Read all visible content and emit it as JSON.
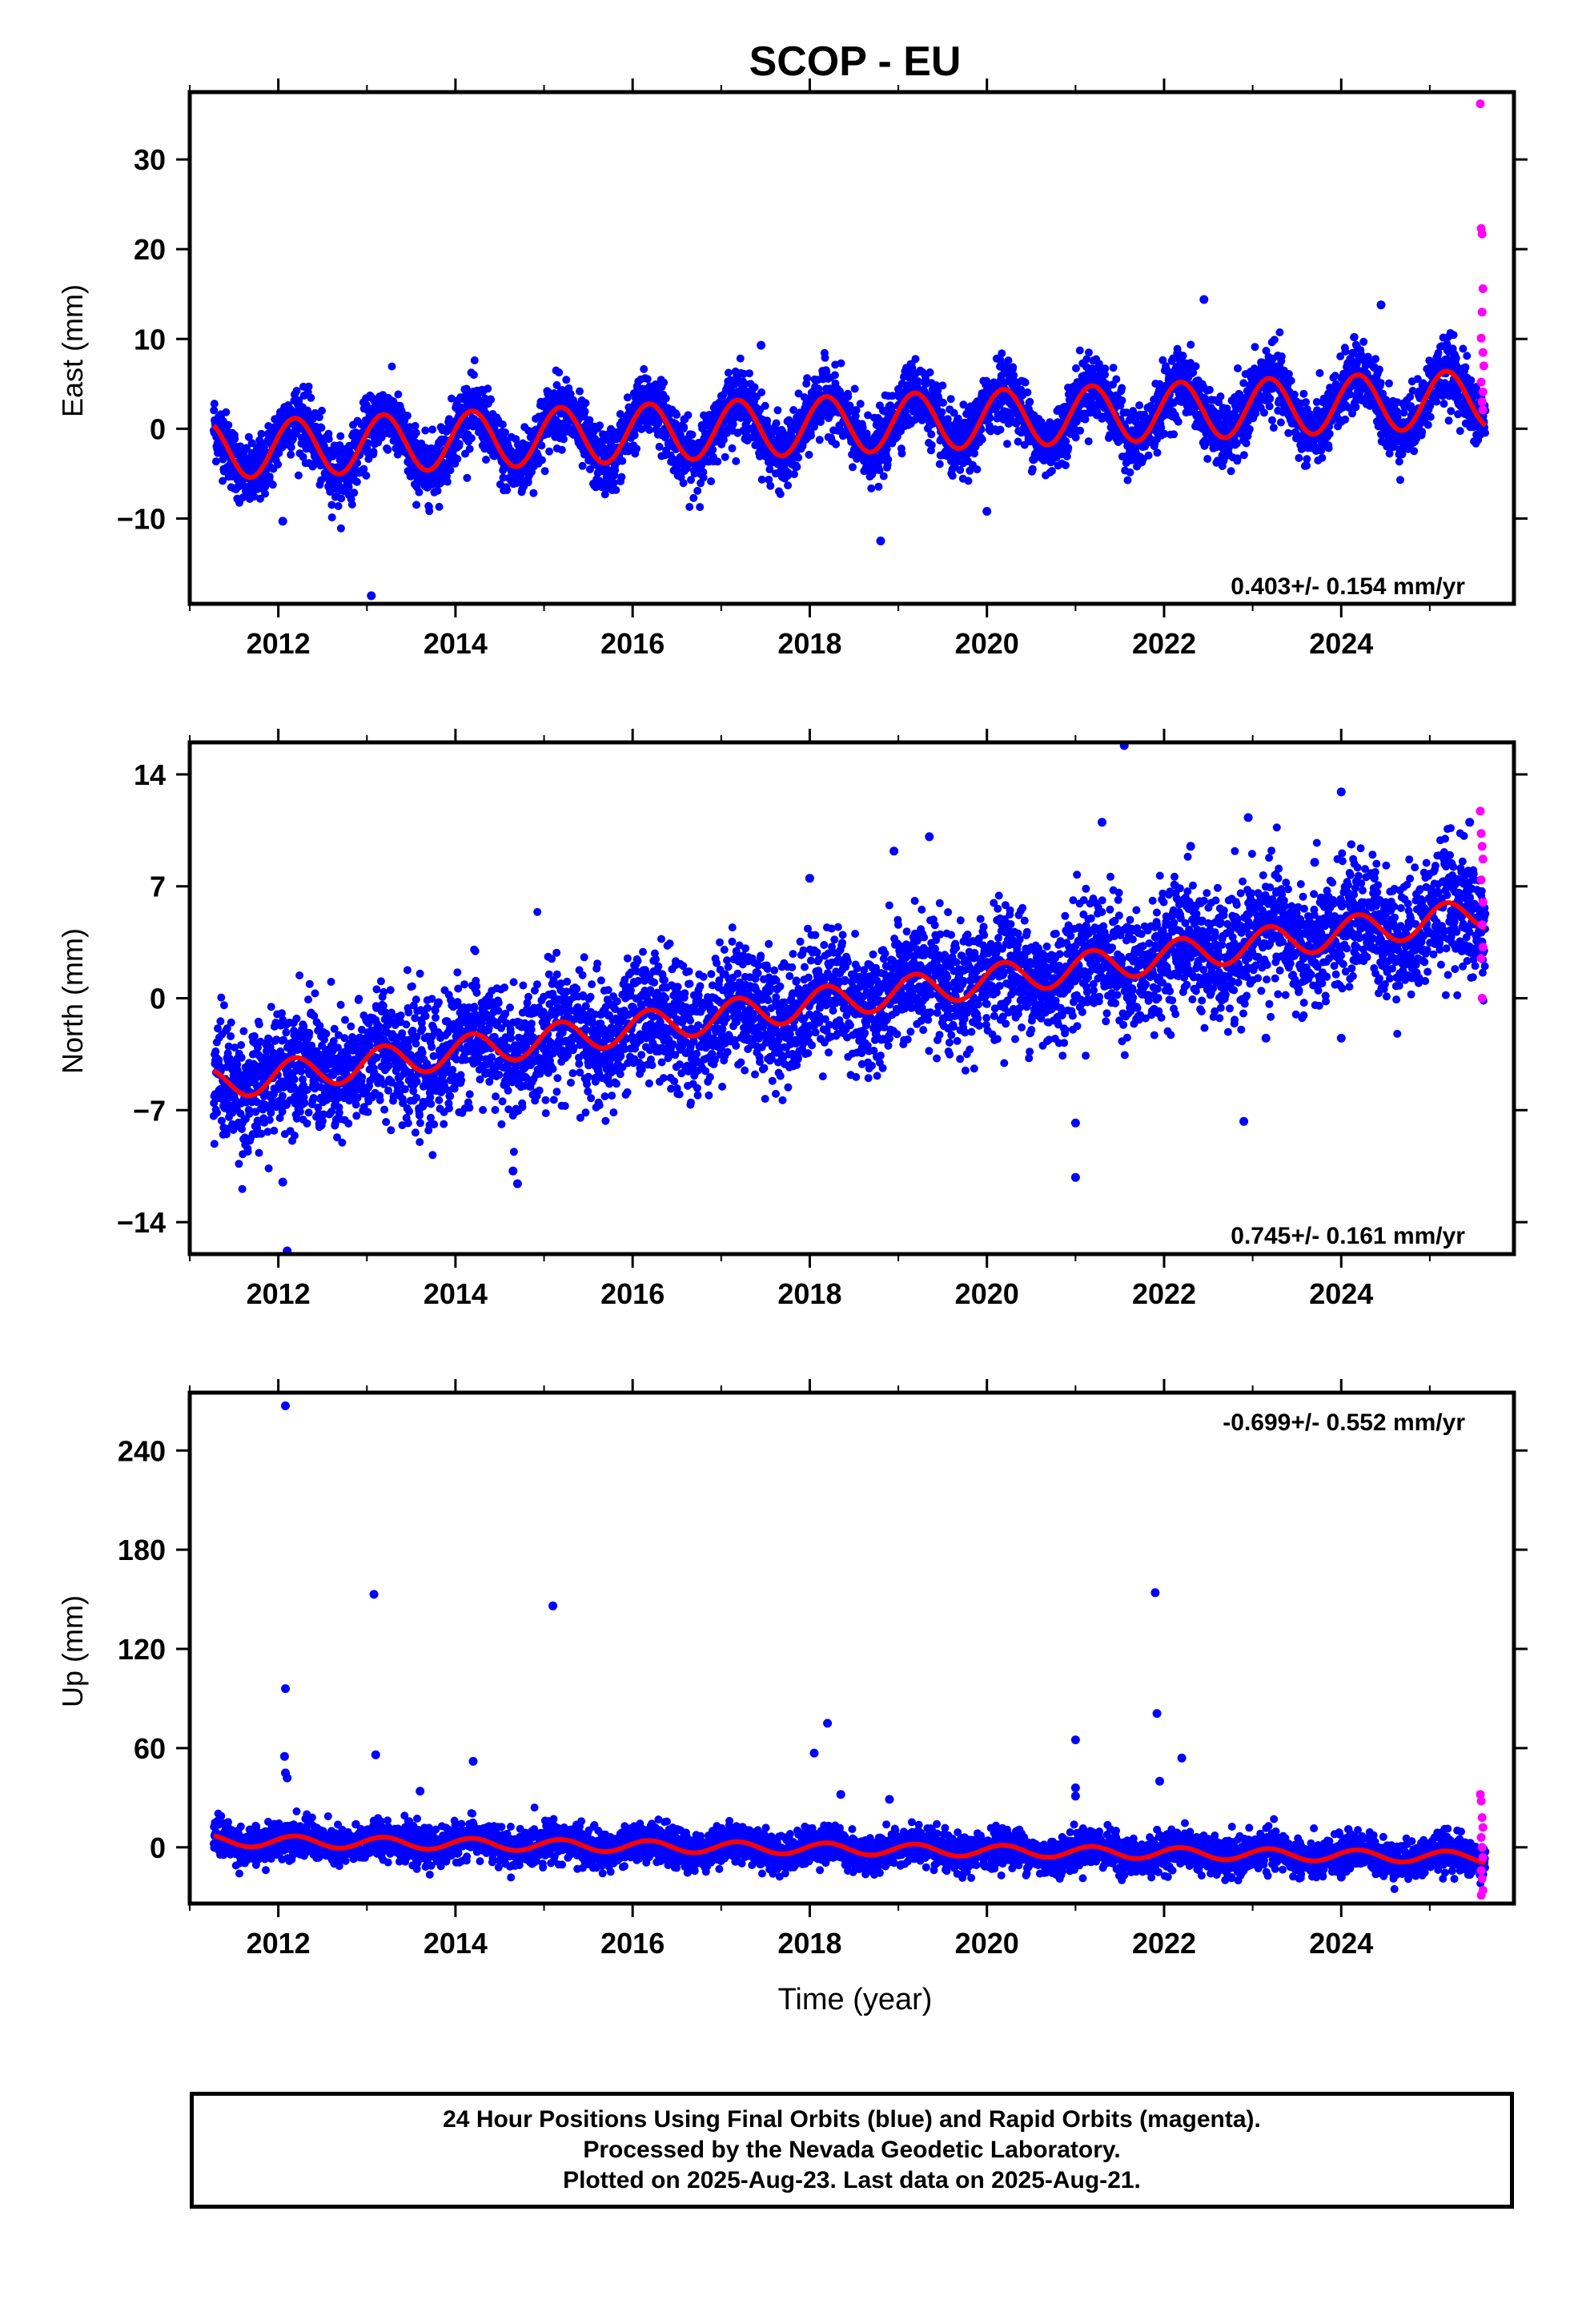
{
  "title": "SCOP - EU",
  "xlabel": "Time (year)",
  "footer": {
    "line1": "24 Hour Positions Using Final Orbits (blue) and Rapid Orbits (magenta).",
    "line2": "Processed by the Nevada Geodetic Laboratory.",
    "line3": "Plotted on 2025-Aug-23. Last data on 2025-Aug-21."
  },
  "colors": {
    "final": "#0000ff",
    "rapid": "#ff00ff",
    "model": "#ff0000"
  },
  "chart_data": [
    {
      "type": "scatter",
      "name": "east",
      "ylabel": "East (mm)",
      "rate": "0.403+/- 0.154 mm/yr",
      "rate_position": "bottom-right",
      "xlim": [
        2011.0,
        2025.95
      ],
      "ylim": [
        -19.5,
        37.5
      ],
      "xticks": [
        2012,
        2014,
        2016,
        2018,
        2020,
        2022,
        2024
      ],
      "yticks": [
        30,
        20,
        10,
        0,
        -10
      ],
      "model": {
        "start": 2011.27,
        "end": 2025.63,
        "intercept": -2.4,
        "slope": 0.403,
        "amplitude": 3.2
      },
      "scatter_sd": 1.8,
      "outliers": [
        [
          2012.05,
          -10.3
        ],
        [
          2013.05,
          -18.6
        ],
        [
          2017.45,
          9.3
        ],
        [
          2018.8,
          -12.5
        ],
        [
          2022.45,
          14.4
        ],
        [
          2024.45,
          13.8
        ],
        [
          2020.0,
          -9.2
        ]
      ],
      "rapid": [
        [
          2025.57,
          36.2
        ],
        [
          2025.58,
          22.3
        ],
        [
          2025.59,
          21.7
        ],
        [
          2025.6,
          15.6
        ],
        [
          2025.59,
          13.0
        ],
        [
          2025.58,
          10.1
        ],
        [
          2025.6,
          8.5
        ],
        [
          2025.61,
          7.0
        ],
        [
          2025.58,
          5.2
        ],
        [
          2025.6,
          4.1
        ],
        [
          2025.59,
          3.0
        ],
        [
          2025.6,
          2.1
        ]
      ]
    },
    {
      "type": "scatter",
      "name": "north",
      "ylabel": "North (mm)",
      "rate": "0.745+/- 0.161 mm/yr",
      "rate_position": "bottom-right",
      "xlim": [
        2011.0,
        2025.95
      ],
      "ylim": [
        -16.0,
        16.0
      ],
      "xticks": [
        2012,
        2014,
        2016,
        2018,
        2020,
        2022,
        2024
      ],
      "yticks": [
        14,
        7,
        0,
        -7,
        -14
      ],
      "model": {
        "start": 2011.27,
        "end": 2025.63,
        "intercept": -5.4,
        "slope": 0.745,
        "amplitude": 1.0
      },
      "scatter_sd": 1.9,
      "outliers": [
        [
          2012.05,
          -11.5
        ],
        [
          2012.1,
          -15.8
        ],
        [
          2014.65,
          -10.8
        ],
        [
          2014.7,
          -11.6
        ],
        [
          2018.0,
          7.5
        ],
        [
          2018.95,
          9.2
        ],
        [
          2019.35,
          10.1
        ],
        [
          2021.0,
          -11.2
        ],
        [
          2021.0,
          -7.8
        ],
        [
          2021.55,
          15.8
        ],
        [
          2021.3,
          11.0
        ],
        [
          2022.3,
          9.5
        ],
        [
          2022.9,
          -7.7
        ],
        [
          2022.95,
          11.3
        ],
        [
          2023.15,
          -2.5
        ],
        [
          2023.7,
          8.5
        ],
        [
          2024.0,
          12.9
        ],
        [
          2024.0,
          -2.5
        ],
        [
          2025.45,
          11.0
        ]
      ],
      "rapid": [
        [
          2025.57,
          11.7
        ],
        [
          2025.58,
          10.3
        ],
        [
          2025.59,
          9.5
        ],
        [
          2025.6,
          8.7
        ],
        [
          2025.58,
          7.4
        ],
        [
          2025.6,
          6.0
        ],
        [
          2025.59,
          4.6
        ],
        [
          2025.6,
          3.2
        ],
        [
          2025.58,
          2.5
        ],
        [
          2025.59,
          0.0
        ]
      ]
    },
    {
      "type": "scatter",
      "name": "up",
      "ylabel": "Up (mm)",
      "rate": "-0.699+/- 0.552 mm/yr",
      "rate_position": "top-right",
      "xlim": [
        2011.0,
        2025.95
      ],
      "ylim": [
        -34.0,
        275.0
      ],
      "xticks": [
        2012,
        2014,
        2016,
        2018,
        2020,
        2022,
        2024
      ],
      "yticks": [
        240,
        180,
        120,
        60,
        0
      ],
      "model": {
        "start": 2011.27,
        "end": 2025.63,
        "intercept": 4.0,
        "slope": -0.699,
        "amplitude": 3.5
      },
      "scatter_sd": 5.5,
      "outliers": [
        [
          2012.08,
          267.0
        ],
        [
          2012.08,
          96.0
        ],
        [
          2012.07,
          55.0
        ],
        [
          2012.08,
          45.0
        ],
        [
          2012.1,
          42.0
        ],
        [
          2013.08,
          153.0
        ],
        [
          2013.1,
          56.0
        ],
        [
          2013.6,
          34.0
        ],
        [
          2014.2,
          52.0
        ],
        [
          2015.1,
          146.0
        ],
        [
          2018.05,
          57.0
        ],
        [
          2018.2,
          75.0
        ],
        [
          2018.35,
          32.0
        ],
        [
          2018.9,
          29.0
        ],
        [
          2021.0,
          65.0
        ],
        [
          2021.0,
          36.0
        ],
        [
          2021.0,
          31.0
        ],
        [
          2021.9,
          154.0
        ],
        [
          2021.92,
          81.0
        ],
        [
          2021.95,
          40.0
        ],
        [
          2022.2,
          54.0
        ],
        [
          2024.0,
          -18.0
        ]
      ],
      "rapid": [
        [
          2025.57,
          32.0
        ],
        [
          2025.58,
          28.0
        ],
        [
          2025.59,
          18.0
        ],
        [
          2025.6,
          12.0
        ],
        [
          2025.58,
          6.0
        ],
        [
          2025.59,
          0.0
        ],
        [
          2025.6,
          -6.0
        ],
        [
          2025.58,
          -14.0
        ],
        [
          2025.59,
          -19.0
        ],
        [
          2025.6,
          -26.0
        ],
        [
          2025.58,
          -29.0
        ]
      ]
    }
  ]
}
